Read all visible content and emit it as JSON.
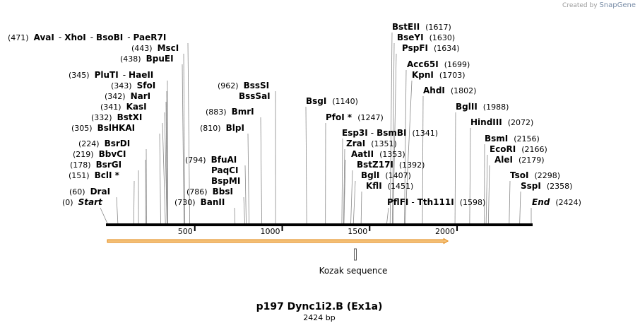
{
  "credit": {
    "prefix": "Created by",
    "brand": "SnapGene"
  },
  "map": {
    "title": "p197 Dync1i2.B (Ex1a)",
    "length_label": "2424 bp",
    "length": 2424,
    "scale_ticks": [
      "500",
      "1000",
      "1500",
      "2000"
    ],
    "orf_start": 0,
    "orf_end": 1940,
    "feature": {
      "label": "Kozak sequence",
      "start": 1416,
      "end": 1427
    }
  },
  "colors": {
    "orf_fill": "#f5c27a",
    "orf_stroke": "#e38a17",
    "line": "#000000",
    "leader": "#888888"
  },
  "sites": [
    {
      "name": "Start",
      "pos_label": "(0)",
      "pos": 0,
      "italic": true
    },
    {
      "name": "DraI",
      "pos_label": "(60)",
      "pos": 60
    },
    {
      "name": "BclI *",
      "pos_label": "(151)",
      "pos": 151
    },
    {
      "name": "BsrGI",
      "pos_label": "(178)",
      "pos": 178
    },
    {
      "name": "BbvCI",
      "pos_label": "(219)",
      "pos": 219
    },
    {
      "name": "BsrDI",
      "pos_label": "(224)",
      "pos": 224
    },
    {
      "name": "BslHKAI",
      "pos_label": "(305)",
      "pos": 305
    },
    {
      "name": "BstXI",
      "pos_label": "(332)",
      "pos": 332
    },
    {
      "name": "KasI",
      "pos_label": "(341)",
      "pos": 341
    },
    {
      "name": "NarI",
      "pos_label": "(342)",
      "pos": 342
    },
    {
      "name": "SfoI",
      "pos_label": "(343)",
      "pos": 343
    },
    {
      "name": "PluTI",
      "pos_label": "(345)",
      "pos": 345,
      "extra": "HaeII"
    },
    {
      "name": "BpuEI",
      "pos_label": "(438)",
      "pos": 438
    },
    {
      "name": "MscI",
      "pos_label": "(443)",
      "pos": 443
    },
    {
      "name": "AvaI",
      "pos_label": "(471)",
      "pos": 471,
      "extra": "XhoI",
      "extra2": "BsoBI",
      "extra3": "PaeR7I"
    },
    {
      "name": "BanII",
      "pos_label": "(730)",
      "pos": 730
    },
    {
      "name": "BbsI",
      "pos_label": "(786)",
      "pos": 786
    },
    {
      "name": "BfuAI",
      "pos_label": "(794)",
      "pos": 794,
      "extra": "PaqCI",
      "extra2": "BspMI"
    },
    {
      "name": "BlpI",
      "pos_label": "(810)",
      "pos": 810
    },
    {
      "name": "BmrI",
      "pos_label": "(883)",
      "pos": 883
    },
    {
      "name": "BssSI",
      "pos_label": "(962)",
      "pos": 962,
      "extra": "BssSaI"
    },
    {
      "name": "BsgI",
      "pos_label": "(1140)",
      "pos": 1140
    },
    {
      "name": "PfoI *",
      "pos_label": "(1247)",
      "pos": 1247
    },
    {
      "name": "Esp3I",
      "pos_label": "(1341)",
      "pos": 1341,
      "extra": "BsmBI"
    },
    {
      "name": "ZraI",
      "pos_label": "(1351)",
      "pos": 1351
    },
    {
      "name": "AatII",
      "pos_label": "(1353)",
      "pos": 1353
    },
    {
      "name": "BstZ17I",
      "pos_label": "(1392)",
      "pos": 1392
    },
    {
      "name": "BglI",
      "pos_label": "(1407)",
      "pos": 1407
    },
    {
      "name": "KflI",
      "pos_label": "(1451)",
      "pos": 1451
    },
    {
      "name": "PflFI",
      "pos_label": "(1598)",
      "pos": 1598,
      "extra": "Tth111I"
    },
    {
      "name": "BstEII",
      "pos_label": "(1617)",
      "pos": 1617
    },
    {
      "name": "BseYI",
      "pos_label": "(1630)",
      "pos": 1630
    },
    {
      "name": "PspFI",
      "pos_label": "(1634)",
      "pos": 1634
    },
    {
      "name": "Acc65I",
      "pos_label": "(1699)",
      "pos": 1699
    },
    {
      "name": "KpnI",
      "pos_label": "(1703)",
      "pos": 1703
    },
    {
      "name": "AhdI",
      "pos_label": "(1802)",
      "pos": 1802
    },
    {
      "name": "BglII",
      "pos_label": "(1988)",
      "pos": 1988
    },
    {
      "name": "HindIII",
      "pos_label": "(2072)",
      "pos": 2072
    },
    {
      "name": "BsmI",
      "pos_label": "(2156)",
      "pos": 2156
    },
    {
      "name": "EcoRI",
      "pos_label": "(2166)",
      "pos": 2166
    },
    {
      "name": "AleI",
      "pos_label": "(2179)",
      "pos": 2179
    },
    {
      "name": "TsoI",
      "pos_label": "(2298)",
      "pos": 2298
    },
    {
      "name": "SspI",
      "pos_label": "(2358)",
      "pos": 2358
    },
    {
      "name": "End",
      "pos_label": "(2424)",
      "pos": 2424,
      "italic": true
    }
  ]
}
